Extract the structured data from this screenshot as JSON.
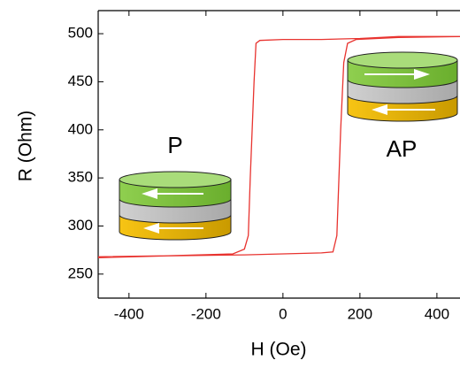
{
  "chart_data": {
    "type": "line",
    "xlabel": "H (Oe)",
    "ylabel": "R (Ohm)",
    "annotations": [
      "P",
      "AP"
    ],
    "x": [
      -480,
      -300,
      -100,
      0,
      100,
      130,
      140,
      150,
      158,
      168,
      190,
      300,
      460,
      300,
      200,
      100,
      0,
      -60,
      -70,
      -75,
      -85,
      -90,
      -100,
      -130,
      -300,
      -480
    ],
    "series": [
      {
        "color": "#e8332f",
        "values": [
          268,
          269,
          270,
          271,
          272,
          273,
          290,
          400,
          470,
          490,
          494,
          496,
          497,
          497,
          495,
          494,
          494,
          493,
          490,
          450,
          350,
          290,
          276,
          271,
          269,
          267
        ]
      }
    ],
    "xlim": [
      -480,
      460
    ],
    "ylim": [
      225,
      524
    ],
    "xticks": [
      -400,
      -200,
      0,
      200,
      400
    ],
    "yticks": [
      250,
      300,
      350,
      400,
      450,
      500
    ]
  }
}
